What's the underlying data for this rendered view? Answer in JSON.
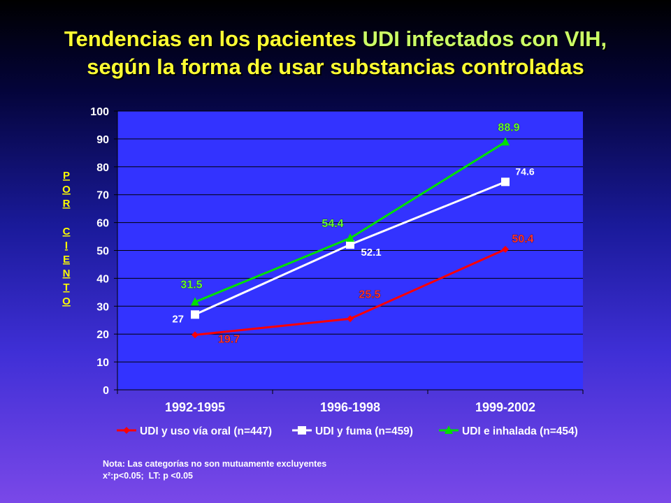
{
  "title": {
    "line1_prefix": "Tendencias en los pacientes ",
    "line1_highlight": "UDI infectados con VIH,",
    "line2": "según la forma de usar substancias controladas"
  },
  "note": {
    "line1": "Nota: Las categorías no son mutuamente excluyentes",
    "line2": "x²:p<0.05;  LT: p <0.05"
  },
  "colors": {
    "plot_background": "#3333ff",
    "oral": "#ff0000",
    "fuma": "#ffffff",
    "inhalada": "#00e000",
    "ylabel": "#ffff00",
    "label_oral": "#ff3333",
    "label_inhalada": "#66ff33"
  },
  "chart_data": {
    "type": "line",
    "title": "Tendencias en los pacientes UDI infectados con VIH, según la forma de usar substancias controladas",
    "ylabel": "POR CIENTO",
    "xlabel": "",
    "categories": [
      "1992-1995",
      "1996-1998",
      "1999-2002"
    ],
    "ylim": [
      0,
      100
    ],
    "yticks": [
      0,
      10,
      20,
      30,
      40,
      50,
      60,
      70,
      80,
      90,
      100
    ],
    "grid": "horizontal",
    "legend_position": "bottom",
    "series": [
      {
        "name": "UDI y uso vía oral (n=447)",
        "values": [
          19.7,
          25.5,
          50.4
        ],
        "labels": [
          "19.7",
          "25.5",
          "50.4"
        ],
        "marker": "diamond"
      },
      {
        "name": "UDI y fuma (n=459)",
        "values": [
          27,
          52.1,
          74.6
        ],
        "labels": [
          "27",
          "52.1",
          "74.6"
        ],
        "marker": "square"
      },
      {
        "name": "UDI  e inhalada (n=454)",
        "values": [
          31.5,
          54.4,
          88.9
        ],
        "labels": [
          "31.5",
          "54.4",
          "88.9"
        ],
        "marker": "triangle"
      }
    ]
  }
}
